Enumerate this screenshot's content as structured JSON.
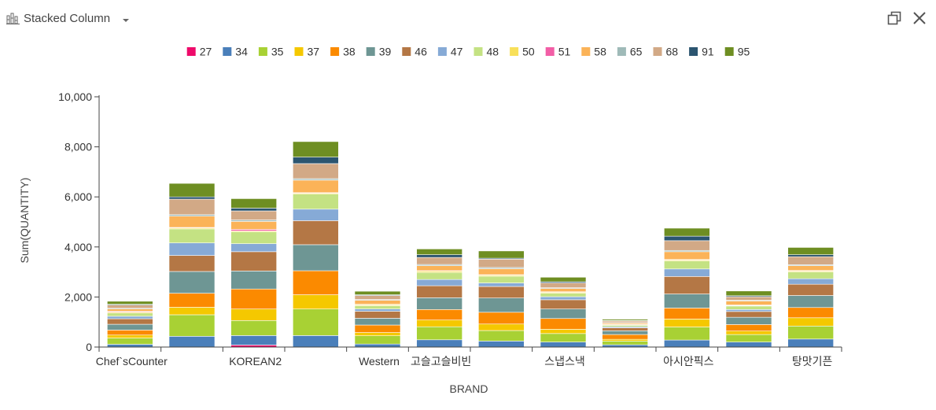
{
  "header": {
    "chart_type_label": "Stacked Column",
    "chart_type_icon": "stacked-column-chart-icon",
    "dropdown_icon": "caret-down-icon",
    "maximize_icon": "restore-window-icon",
    "close_icon": "close-icon"
  },
  "colors": {
    "27": "#ee0a6a",
    "34": "#4a7fba",
    "35": "#a8d134",
    "37": "#f5c800",
    "38": "#fb8a00",
    "39": "#6e9694",
    "46": "#b47745",
    "47": "#86aad6",
    "48": "#c4e283",
    "50": "#f8e05a",
    "51": "#f25ea6",
    "58": "#fbb358",
    "65": "#9fbab8",
    "68": "#d2a986",
    "91": "#2b5570",
    "95": "#6e8e22"
  },
  "chart_data": {
    "type": "bar",
    "stacked": true,
    "xlabel": "BRAND",
    "ylabel": "Sum(QUANTITY)",
    "ylim": [
      0,
      10000
    ],
    "yticks": [
      0,
      2000,
      4000,
      6000,
      8000,
      10000
    ],
    "ytick_labels": [
      "0",
      "2,000",
      "4,000",
      "6,000",
      "8,000",
      "10,000"
    ],
    "categories": [
      "Chef`sCounter",
      "",
      "KOREAN2",
      "",
      "Western",
      "고슬고슬비빈",
      "",
      "스냅스낵",
      "",
      "아시안픽스",
      "",
      "탕맛기픈"
    ],
    "legend_position": "top",
    "grid": false,
    "series": [
      {
        "name": "27",
        "values": [
          0,
          0,
          80,
          0,
          0,
          0,
          0,
          0,
          0,
          0,
          0,
          0
        ]
      },
      {
        "name": "34",
        "values": [
          110,
          430,
          380,
          460,
          120,
          290,
          240,
          200,
          90,
          280,
          200,
          320
        ]
      },
      {
        "name": "35",
        "values": [
          250,
          860,
          600,
          1060,
          330,
          520,
          420,
          340,
          150,
          520,
          300,
          520
        ]
      },
      {
        "name": "37",
        "values": [
          120,
          300,
          460,
          570,
          130,
          270,
          260,
          170,
          70,
          320,
          140,
          330
        ]
      },
      {
        "name": "38",
        "values": [
          200,
          560,
          800,
          960,
          300,
          420,
          470,
          430,
          190,
          440,
          260,
          410
        ]
      },
      {
        "name": "39",
        "values": [
          230,
          870,
          720,
          1040,
          270,
          470,
          570,
          380,
          150,
          560,
          290,
          480
        ]
      },
      {
        "name": "46",
        "values": [
          220,
          640,
          770,
          960,
          280,
          480,
          460,
          370,
          120,
          700,
          230,
          450
        ]
      },
      {
        "name": "47",
        "values": [
          100,
          500,
          320,
          460,
          90,
          250,
          140,
          120,
          40,
          300,
          80,
          220
        ]
      },
      {
        "name": "48",
        "values": [
          130,
          560,
          470,
          600,
          130,
          280,
          270,
          140,
          60,
          320,
          140,
          270
        ]
      },
      {
        "name": "50",
        "values": [
          40,
          40,
          40,
          40,
          40,
          50,
          40,
          40,
          20,
          40,
          20,
          40
        ]
      },
      {
        "name": "51",
        "values": [
          30,
          20,
          60,
          20,
          20,
          20,
          20,
          20,
          10,
          20,
          20,
          20
        ]
      },
      {
        "name": "58",
        "values": [
          90,
          450,
          320,
          500,
          160,
          200,
          240,
          130,
          50,
          310,
          160,
          190
        ]
      },
      {
        "name": "65",
        "values": [
          30,
          60,
          60,
          60,
          30,
          50,
          50,
          30,
          20,
          50,
          30,
          40
        ]
      },
      {
        "name": "68",
        "values": [
          130,
          620,
          360,
          600,
          160,
          280,
          330,
          190,
          70,
          390,
          140,
          320
        ]
      },
      {
        "name": "91",
        "values": [
          30,
          90,
          110,
          260,
          30,
          110,
          40,
          50,
          20,
          180,
          40,
          80
        ]
      },
      {
        "name": "95",
        "values": [
          120,
          540,
          380,
          620,
          140,
          230,
          290,
          180,
          50,
          320,
          190,
          290
        ]
      }
    ]
  }
}
